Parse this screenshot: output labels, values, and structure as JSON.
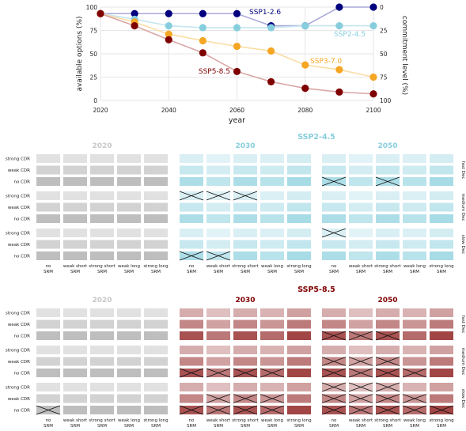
{
  "chart_data": [
    {
      "type": "line",
      "xlabel": "year",
      "ylabel": "available options (%)",
      "y2label": "commitment level (%)",
      "x_ticks": [
        2020,
        2040,
        2060,
        2080,
        2100
      ],
      "y_ticks": [
        0,
        25,
        50,
        75,
        100
      ],
      "y2_ticks": [
        "100",
        "75",
        "50",
        "25",
        "0"
      ],
      "xlim": [
        2020,
        2100
      ],
      "ylim": [
        0,
        100
      ],
      "grid": true,
      "series": [
        {
          "name": "SSP1-2.6",
          "color": "#00007f",
          "line_color": "#a9a9d9",
          "x": [
            2020,
            2030,
            2040,
            2050,
            2060,
            2070,
            2080,
            2090,
            2100
          ],
          "y": [
            93,
            93,
            93,
            93,
            93,
            80,
            80,
            100,
            100
          ]
        },
        {
          "name": "SSP2-4.5",
          "color": "#87cedd",
          "line_color": "#c4e6ee",
          "x": [
            2020,
            2030,
            2040,
            2050,
            2060,
            2070,
            2080,
            2090,
            2100
          ],
          "y": [
            93,
            87,
            80,
            78,
            78,
            78,
            80,
            80,
            80
          ]
        },
        {
          "name": "SSP3-7.0",
          "color": "#f5a623",
          "line_color": "#fbdda6",
          "x": [
            2020,
            2030,
            2040,
            2050,
            2060,
            2070,
            2080,
            2090,
            2100
          ],
          "y": [
            93,
            84,
            71,
            64,
            58,
            53,
            38,
            33,
            25
          ]
        },
        {
          "name": "SSP5-8.5",
          "color": "#7f0000",
          "line_color": "#d9a6a6",
          "x": [
            2020,
            2030,
            2040,
            2050,
            2060,
            2070,
            2080,
            2090,
            2100
          ],
          "y": [
            93,
            80,
            65,
            51,
            31,
            20,
            13,
            9,
            7
          ]
        }
      ]
    },
    {
      "type": "heatmap",
      "title": "SSP2-4.5",
      "title_color": "#87cedd",
      "panels": [
        "2020",
        "2030",
        "2050"
      ],
      "panel_colors": [
        "#c8c8c8",
        "#87cedd",
        "#87cedd"
      ],
      "row_groups": [
        "fast Dec",
        "medium Dec",
        "slow Dec"
      ],
      "rows": [
        "strong CDR",
        "weak CDR",
        "no CDR"
      ],
      "columns": [
        "no SRM",
        "weak short SRM",
        "strong short SRM",
        "weak long SRM",
        "strong long SRM"
      ],
      "crossed": {
        "2030": [
          [],
          [],
          [],
          [
            0,
            1,
            2
          ],
          [],
          [],
          [],
          [],
          [
            0,
            1
          ]
        ],
        "2050": [
          [],
          [],
          [
            0,
            2
          ],
          [],
          [],
          [],
          [
            0
          ],
          [],
          []
        ]
      }
    },
    {
      "type": "heatmap",
      "title": "SSP5-8.5",
      "title_color": "#7f0000",
      "panels": [
        "2020",
        "2030",
        "2050"
      ],
      "panel_colors": [
        "#c8c8c8",
        "#7f0000",
        "#7f0000"
      ],
      "row_groups": [
        "fast Dec",
        "medium Dec",
        "slow Dec"
      ],
      "rows": [
        "strong CDR",
        "weak CDR",
        "no CDR"
      ],
      "columns": [
        "no SRM",
        "weak short SRM",
        "strong short SRM",
        "weak long SRM",
        "strong long SRM"
      ],
      "crossed": {
        "2020": [
          [],
          [],
          [],
          [],
          [],
          [],
          [],
          [],
          [
            0
          ]
        ],
        "2030": [
          [],
          [],
          [],
          [],
          [],
          [
            0,
            1,
            2,
            3
          ],
          [],
          [
            1,
            2,
            3
          ],
          [
            0,
            1,
            2,
            3
          ]
        ],
        "2050": [
          [],
          [],
          [
            0,
            1,
            2
          ],
          [],
          [
            0,
            1,
            2
          ],
          [
            0,
            1,
            2,
            3
          ],
          [
            0,
            1,
            2
          ],
          [
            0,
            1,
            2,
            3
          ],
          [
            0,
            1,
            2,
            3,
            4
          ]
        ]
      }
    }
  ]
}
